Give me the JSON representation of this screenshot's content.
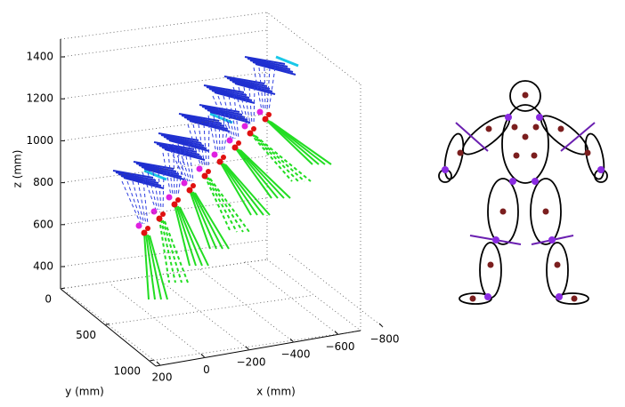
{
  "plot3d": {
    "zlabel": "z (mm)",
    "ylabel": "y (mm)",
    "xlabel": "x (mm)",
    "zticks": [
      400,
      600,
      800,
      1000,
      1200,
      1400
    ],
    "yticks": [
      0,
      500,
      1000
    ],
    "xticks": [
      200,
      0,
      {
        "value": -200,
        "label": "−200"
      },
      {
        "value": -400,
        "label": "−400"
      },
      {
        "value": -600,
        "label": "−600"
      },
      {
        "value": -800,
        "label": "−800"
      }
    ]
  }
}
